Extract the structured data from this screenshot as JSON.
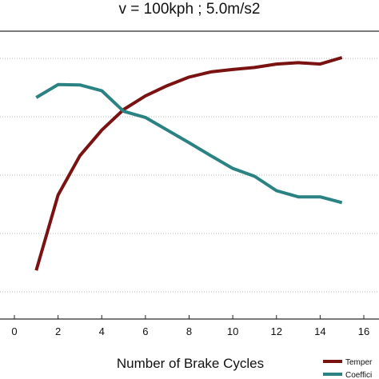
{
  "chart_data": {
    "type": "line",
    "title": "v = 100kph ; 5.0m/s2",
    "xlabel": "Number of Brake Cycles",
    "ylabel": "",
    "xlim": [
      0,
      16
    ],
    "xticks": [
      0,
      2,
      4,
      6,
      8,
      10,
      12,
      14,
      16
    ],
    "xtick_labels": [
      "0",
      "2",
      "4",
      "6",
      "8",
      "10",
      "12",
      "14",
      "16"
    ],
    "ylim": [
      0,
      1
    ],
    "grid": "horizontal dotted",
    "legend_placement": "bottom-right",
    "series": [
      {
        "name": "Temper",
        "color": "#7a1212",
        "x": [
          1,
          2,
          3,
          4,
          5,
          6,
          7,
          8,
          9,
          10,
          11,
          12,
          13,
          14,
          15
        ],
        "y": [
          0.315,
          0.535,
          0.65,
          0.725,
          0.785,
          0.825,
          0.855,
          0.88,
          0.895,
          0.902,
          0.908,
          0.918,
          0.922,
          0.918,
          0.937
        ]
      },
      {
        "name": "Coeffici",
        "color": "#2a8282",
        "x": [
          1,
          2,
          3,
          4,
          5,
          6,
          7,
          8,
          9,
          10,
          11,
          12,
          13,
          14,
          15
        ],
        "y": [
          0.82,
          0.858,
          0.857,
          0.84,
          0.78,
          0.762,
          0.725,
          0.688,
          0.65,
          0.613,
          0.59,
          0.548,
          0.53,
          0.53,
          0.513
        ]
      }
    ]
  }
}
